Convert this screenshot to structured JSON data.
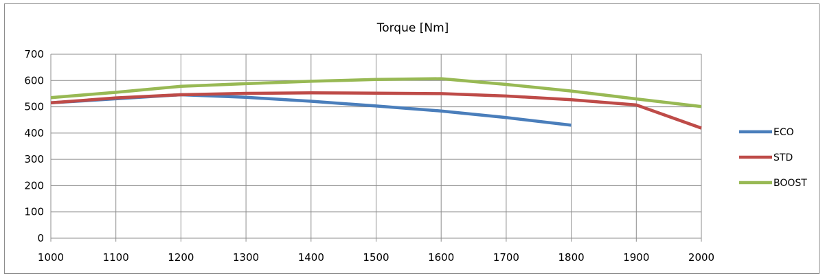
{
  "chart_data": {
    "type": "line",
    "title": "Torque [Nm]",
    "xlabel": "",
    "ylabel": "",
    "x": [
      1000,
      1100,
      1200,
      1300,
      1400,
      1500,
      1600,
      1700,
      1800,
      1900,
      2000
    ],
    "xlim": [
      1000,
      2000
    ],
    "ylim": [
      0,
      700
    ],
    "x_ticks": [
      1000,
      1100,
      1200,
      1300,
      1400,
      1500,
      1600,
      1700,
      1800,
      1900,
      2000
    ],
    "y_ticks": [
      0,
      100,
      200,
      300,
      400,
      500,
      600,
      700
    ],
    "grid": true,
    "legend_position": "right",
    "series": [
      {
        "name": "ECO",
        "color": "#4a7ebb",
        "points": [
          [
            1000,
            515
          ],
          [
            1200,
            546
          ],
          [
            1300,
            536
          ],
          [
            1400,
            521
          ],
          [
            1500,
            503
          ],
          [
            1600,
            484
          ],
          [
            1700,
            459
          ],
          [
            1800,
            430
          ]
        ]
      },
      {
        "name": "STD",
        "color": "#be4b48",
        "points": [
          [
            1000,
            515
          ],
          [
            1100,
            534
          ],
          [
            1200,
            546
          ],
          [
            1300,
            551
          ],
          [
            1400,
            553
          ],
          [
            1500,
            552
          ],
          [
            1600,
            550
          ],
          [
            1700,
            541
          ],
          [
            1800,
            527
          ],
          [
            1900,
            507
          ],
          [
            2000,
            419
          ]
        ]
      },
      {
        "name": "BOOST",
        "color": "#98b954",
        "points": [
          [
            1000,
            535
          ],
          [
            1100,
            555
          ],
          [
            1200,
            578
          ],
          [
            1300,
            588
          ],
          [
            1400,
            597
          ],
          [
            1500,
            604
          ],
          [
            1600,
            607
          ],
          [
            1700,
            585
          ],
          [
            1800,
            560
          ],
          [
            1900,
            530
          ],
          [
            2000,
            501
          ]
        ]
      }
    ]
  }
}
